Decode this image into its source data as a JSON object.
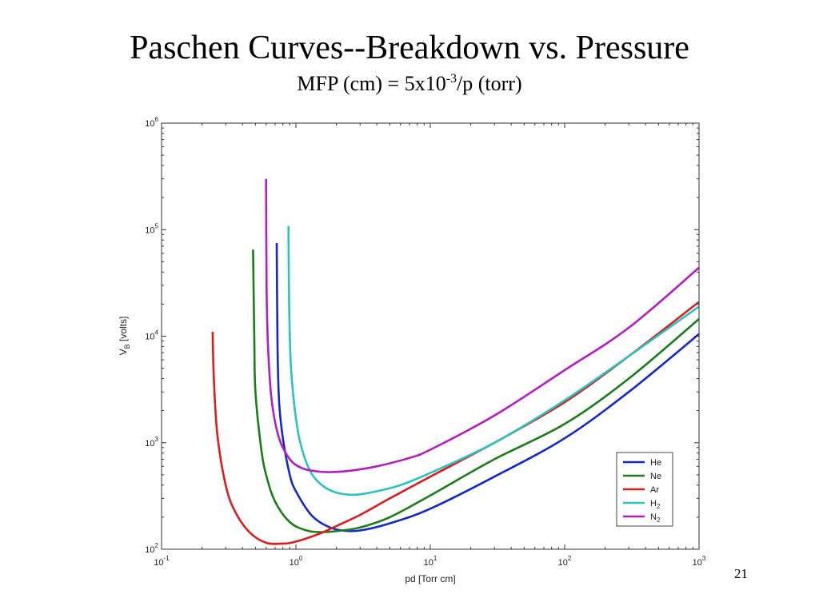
{
  "slide": {
    "title": "Paschen Curves--Breakdown vs. Pressure",
    "subtitle_prefix": "MFP (cm) = 5x10",
    "subtitle_exponent": "-3",
    "subtitle_suffix": "/p (torr)",
    "page_number": "21"
  },
  "colors": {
    "He": "#1428c8",
    "Ne": "#1a7d1a",
    "Ar": "#d81e1e",
    "H2": "#2ec0c0",
    "N2": "#b21ec0"
  },
  "chart_data": {
    "type": "line",
    "title": "",
    "xlabel": "pd [Torr cm]",
    "ylabel_main": "V",
    "ylabel_sub": "B",
    "ylabel_suffix": " [volts]",
    "xscale": "log",
    "yscale": "log",
    "xlim": [
      0.1,
      1000
    ],
    "ylim": [
      100,
      1000000
    ],
    "x_ticks": [
      {
        "base": "10",
        "exp": "-1",
        "value": 0.1
      },
      {
        "base": "10",
        "exp": "0",
        "value": 1
      },
      {
        "base": "10",
        "exp": "1",
        "value": 10
      },
      {
        "base": "10",
        "exp": "2",
        "value": 100
      },
      {
        "base": "10",
        "exp": "3",
        "value": 1000
      }
    ],
    "y_ticks": [
      {
        "base": "10",
        "exp": "2",
        "value": 100
      },
      {
        "base": "10",
        "exp": "3",
        "value": 1000
      },
      {
        "base": "10",
        "exp": "4",
        "value": 10000
      },
      {
        "base": "10",
        "exp": "5",
        "value": 100000
      },
      {
        "base": "10",
        "exp": "6",
        "value": 1000000
      }
    ],
    "grid": false,
    "legend_position": "bottom-right",
    "series": [
      {
        "name": "He",
        "sub": "",
        "x": [
          0.72,
          0.73,
          0.75,
          0.8,
          0.9,
          1.0,
          1.3,
          1.7,
          2.2,
          3,
          5,
          10,
          30,
          100,
          300,
          1000
        ],
        "y": [
          75000,
          8000,
          2400,
          1100,
          500,
          350,
          210,
          165,
          150,
          150,
          175,
          240,
          480,
          1100,
          3000,
          10500
        ]
      },
      {
        "name": "Ne",
        "sub": "",
        "x": [
          0.48,
          0.49,
          0.5,
          0.55,
          0.6,
          0.7,
          0.9,
          1.2,
          1.6,
          2.2,
          3,
          5,
          10,
          30,
          100,
          300,
          1000
        ],
        "y": [
          65000,
          9000,
          3000,
          900,
          500,
          280,
          180,
          150,
          145,
          150,
          160,
          200,
          320,
          700,
          1500,
          4000,
          14500
        ]
      },
      {
        "name": "Ar",
        "sub": "",
        "x": [
          0.24,
          0.245,
          0.26,
          0.3,
          0.35,
          0.45,
          0.6,
          0.8,
          1.0,
          1.5,
          2,
          3,
          5,
          10,
          30,
          100,
          300,
          1000
        ],
        "y": [
          11000,
          4000,
          1200,
          400,
          230,
          145,
          115,
          113,
          118,
          140,
          165,
          210,
          300,
          480,
          1000,
          2400,
          6500,
          21000
        ]
      },
      {
        "name": "H",
        "sub": "2",
        "x": [
          0.88,
          0.89,
          0.92,
          1.0,
          1.1,
          1.3,
          1.6,
          2.0,
          2.5,
          3,
          4,
          6,
          10,
          30,
          100,
          300,
          1000
        ],
        "y": [
          108000,
          20000,
          5000,
          1700,
          900,
          520,
          390,
          340,
          325,
          328,
          350,
          400,
          520,
          1000,
          2500,
          6500,
          19000
        ]
      },
      {
        "name": "N",
        "sub": "2",
        "x": [
          0.6,
          0.605,
          0.62,
          0.66,
          0.75,
          0.9,
          1.1,
          1.4,
          1.8,
          2.5,
          4,
          7,
          10,
          30,
          100,
          300,
          1000
        ],
        "y": [
          300000,
          30000,
          8000,
          2500,
          1100,
          700,
          580,
          540,
          530,
          545,
          600,
          720,
          860,
          1800,
          4800,
          12000,
          44000
        ]
      }
    ]
  }
}
